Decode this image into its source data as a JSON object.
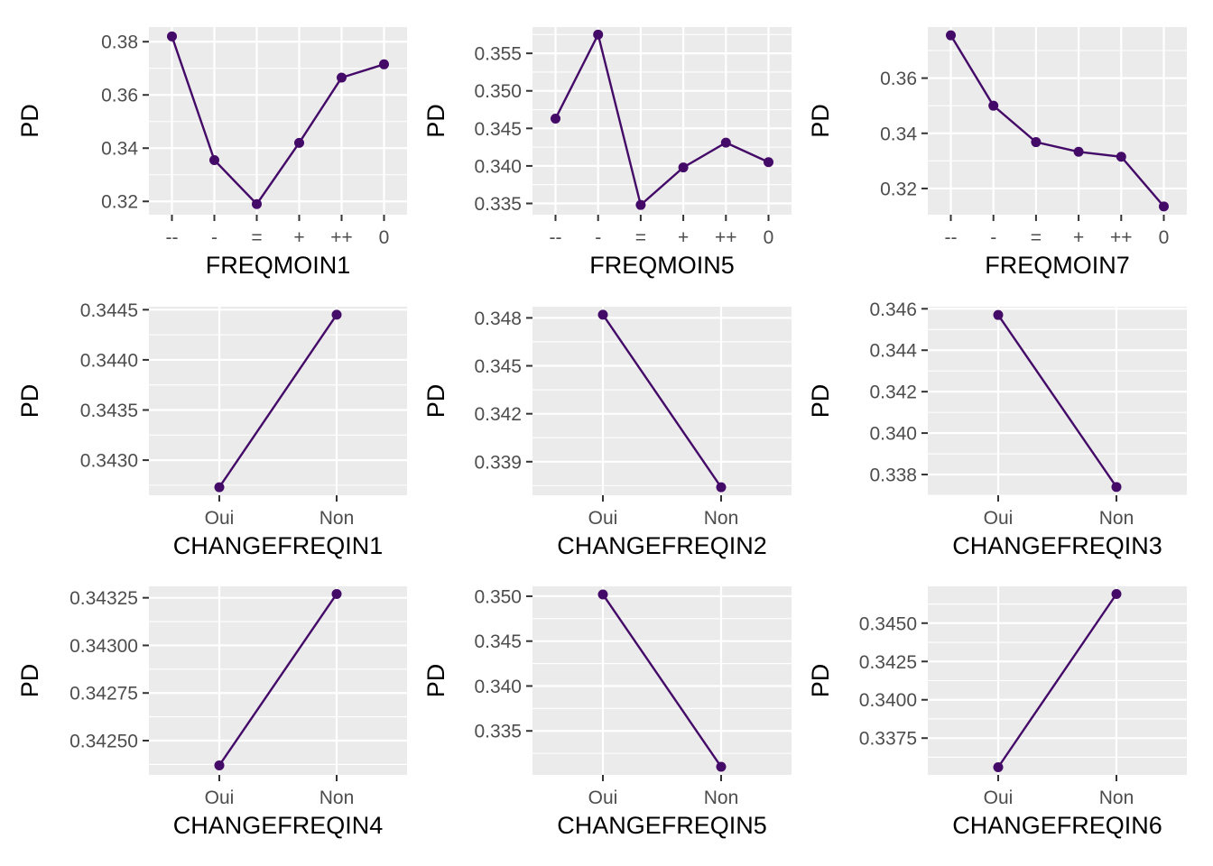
{
  "series_color": "#440a68",
  "chart_data": [
    {
      "type": "line",
      "xlabel": "FREQMOIN1",
      "ylabel": "PD",
      "categories": [
        "--",
        "-",
        "=",
        "+",
        "++",
        "0"
      ],
      "values": [
        0.382,
        0.3355,
        0.319,
        0.342,
        0.3665,
        0.3715
      ],
      "ylim": [
        0.315,
        0.3855
      ],
      "yticks": [
        0.32,
        0.34,
        0.36,
        0.38
      ],
      "ytick_labels": [
        "0.32",
        "0.34",
        "0.36",
        "0.38"
      ],
      "grid": true
    },
    {
      "type": "line",
      "xlabel": "FREQMOIN5",
      "ylabel": "PD",
      "categories": [
        "--",
        "-",
        "=",
        "+",
        "++",
        "0"
      ],
      "values": [
        0.3463,
        0.3575,
        0.3348,
        0.3398,
        0.3431,
        0.3405
      ],
      "ylim": [
        0.3335,
        0.3585
      ],
      "yticks": [
        0.335,
        0.34,
        0.345,
        0.35,
        0.355
      ],
      "ytick_labels": [
        "0.335",
        "0.340",
        "0.345",
        "0.350",
        "0.355"
      ],
      "grid": true
    },
    {
      "type": "line",
      "xlabel": "FREQMOIN7",
      "ylabel": "PD",
      "categories": [
        "--",
        "-",
        "=",
        "+",
        "++",
        "0"
      ],
      "values": [
        0.3755,
        0.35,
        0.3368,
        0.3333,
        0.3315,
        0.3135
      ],
      "ylim": [
        0.3105,
        0.3785
      ],
      "yticks": [
        0.32,
        0.34,
        0.36
      ],
      "ytick_labels": [
        "0.32",
        "0.34",
        "0.36"
      ],
      "grid": true
    },
    {
      "type": "line",
      "xlabel": "CHANGEFREQIN1",
      "ylabel": "PD",
      "categories": [
        "Oui",
        "Non"
      ],
      "values": [
        0.34273,
        0.34445
      ],
      "ylim": [
        0.34265,
        0.34453
      ],
      "yticks": [
        0.343,
        0.3435,
        0.344,
        0.3445
      ],
      "ytick_labels": [
        "0.3430",
        "0.3435",
        "0.3440",
        "0.3445"
      ],
      "grid": true
    },
    {
      "type": "line",
      "xlabel": "CHANGEFREQIN2",
      "ylabel": "PD",
      "categories": [
        "Oui",
        "Non"
      ],
      "values": [
        0.3482,
        0.3374
      ],
      "ylim": [
        0.3369,
        0.3487
      ],
      "yticks": [
        0.339,
        0.342,
        0.345,
        0.348
      ],
      "ytick_labels": [
        "0.339",
        "0.342",
        "0.345",
        "0.348"
      ],
      "grid": true
    },
    {
      "type": "line",
      "xlabel": "CHANGEFREQIN3",
      "ylabel": "PD",
      "categories": [
        "Oui",
        "Non"
      ],
      "values": [
        0.3457,
        0.3374
      ],
      "ylim": [
        0.337,
        0.3461
      ],
      "yticks": [
        0.338,
        0.34,
        0.342,
        0.344,
        0.346
      ],
      "ytick_labels": [
        "0.338",
        "0.340",
        "0.342",
        "0.344",
        "0.346"
      ],
      "grid": true
    },
    {
      "type": "line",
      "xlabel": "CHANGEFREQIN4",
      "ylabel": "PD",
      "categories": [
        "Oui",
        "Non"
      ],
      "values": [
        0.34237,
        0.34327
      ],
      "ylim": [
        0.34232,
        0.34331
      ],
      "yticks": [
        0.3425,
        0.34275,
        0.343,
        0.34325
      ],
      "ytick_labels": [
        "0.34250",
        "0.34275",
        "0.34300",
        "0.34325"
      ],
      "grid": true
    },
    {
      "type": "line",
      "xlabel": "CHANGEFREQIN5",
      "ylabel": "PD",
      "categories": [
        "Oui",
        "Non"
      ],
      "values": [
        0.3502,
        0.331
      ],
      "ylim": [
        0.3301,
        0.3511
      ],
      "yticks": [
        0.335,
        0.34,
        0.345,
        0.35
      ],
      "ytick_labels": [
        "0.335",
        "0.340",
        "0.345",
        "0.350"
      ],
      "grid": true
    },
    {
      "type": "line",
      "xlabel": "CHANGEFREQIN6",
      "ylabel": "PD",
      "categories": [
        "Oui",
        "Non"
      ],
      "values": [
        0.3356,
        0.3469
      ],
      "ylim": [
        0.3351,
        0.3474
      ],
      "yticks": [
        0.3375,
        0.34,
        0.3425,
        0.345
      ],
      "ytick_labels": [
        "0.3375",
        "0.3400",
        "0.3425",
        "0.3450"
      ],
      "grid": true
    }
  ]
}
